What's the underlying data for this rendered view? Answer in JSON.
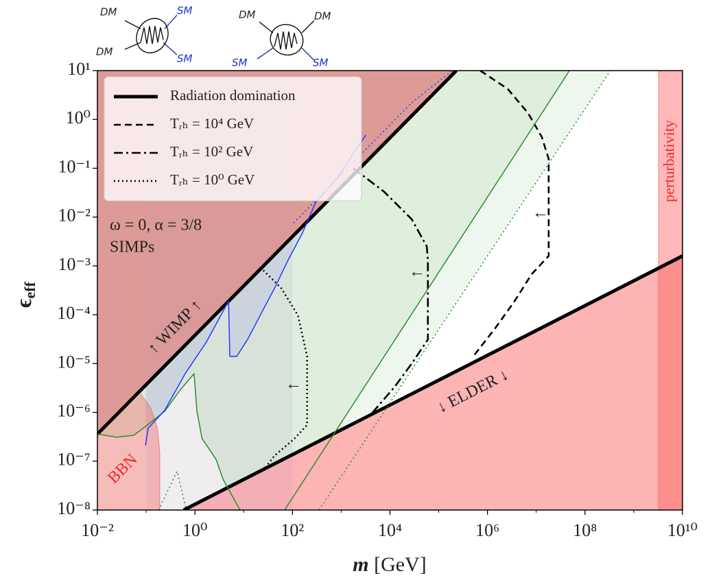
{
  "diagrams": [
    {
      "labels": [
        "DM",
        "SM",
        "DM",
        "SM"
      ]
    },
    {
      "labels": [
        "DM",
        "DM",
        "SM",
        "SM"
      ]
    }
  ],
  "chart_data": {
    "type": "line",
    "log_x": true,
    "log_y": true,
    "xlabel": {
      "symbol": "m",
      "unit": "[GeV]"
    },
    "ylabel": {
      "symbol": "ϵ",
      "subscript": "eff"
    },
    "xlim": [
      0.01,
      10000000000.0
    ],
    "ylim": [
      1e-08,
      10
    ],
    "xticks": [
      {
        "value": 0.01,
        "label": "10⁻²"
      },
      {
        "value": 1,
        "label": "10⁰"
      },
      {
        "value": 100.0,
        "label": "10²"
      },
      {
        "value": 10000.0,
        "label": "10⁴"
      },
      {
        "value": 1000000.0,
        "label": "10⁶"
      },
      {
        "value": 100000000.0,
        "label": "10⁸"
      },
      {
        "value": 10000000000.0,
        "label": "10¹⁰"
      }
    ],
    "xminorticks": [
      0.1,
      10,
      1000.0,
      100000.0,
      10000000.0,
      1000000000.0
    ],
    "yticks": [
      {
        "value": 1e-08,
        "label": "10⁻⁸"
      },
      {
        "value": 1e-07,
        "label": "10⁻⁷"
      },
      {
        "value": 1e-06,
        "label": "10⁻⁶"
      },
      {
        "value": 1e-05,
        "label": "10⁻⁵"
      },
      {
        "value": 0.0001,
        "label": "10⁻⁴"
      },
      {
        "value": 0.001,
        "label": "10⁻³"
      },
      {
        "value": 0.01,
        "label": "10⁻²"
      },
      {
        "value": 0.1,
        "label": "10⁻¹"
      },
      {
        "value": 1,
        "label": "10⁰"
      },
      {
        "value": 10,
        "label": "10¹"
      }
    ],
    "legend": "upper left",
    "series": [
      {
        "name": "Radiation domination",
        "color": "#000000",
        "style": "solid",
        "weight": "thick",
        "x": [
          0.01,
          230000.0
        ],
        "values": [
          3.6e-07,
          10
        ]
      },
      {
        "color": "#000000",
        "style": "solid",
        "weight": "thick",
        "x": [
          0.59,
          10000000000.0
        ],
        "values": [
          1e-08,
          0.0016
        ]
      },
      {
        "name": "Tᵣₕ = 10⁴ GeV",
        "color": "#000000",
        "style": "dashed",
        "weight": "medium",
        "x": [
          710000.0,
          2600000.0,
          6800000.0,
          13000000.0,
          18000000.0,
          18000000.0,
          8100000.0,
          3600000.0,
          1400000.0,
          510000.0
        ],
        "values": [
          10,
          4.2,
          1.35,
          0.44,
          0.155,
          0.0016,
          0.00068,
          0.00019,
          5.1e-05,
          1.4e-05
        ]
      },
      {
        "name": "Tᵣₕ = 10² GeV",
        "color": "#000000",
        "style": "dashdot",
        "weight": "medium",
        "x": [
          1770.0,
          7600.0,
          28000.0,
          57000.0,
          60000.0,
          60000.0,
          28000.0,
          12400.0,
          4000.0
        ],
        "values": [
          0.1,
          0.033,
          0.009,
          0.0025,
          0.0013,
          3.1e-05,
          1e-05,
          3.3e-06,
          8.9e-07
        ]
      },
      {
        "name": "Tᵣₕ = 10⁰ GeV",
        "color": "#000000",
        "style": "dotted",
        "weight": "medium",
        "x": [
          22,
          59,
          130,
          200,
          200,
          110,
          43,
          26
        ],
        "values": [
          0.00093,
          0.00035,
          9.7e-05,
          1.4e-05,
          5.5e-07,
          2.9e-07,
          1.3e-07,
          6.8e-08
        ]
      },
      {
        "color": "#2e8b2e",
        "style": "solid",
        "weight": "thin",
        "x": [
          69,
          48000000.0
        ],
        "values": [
          1e-08,
          10
        ]
      },
      {
        "color": "#2e8b2e",
        "style": "dotted",
        "weight": "thin",
        "x": [
          350,
          330000000.0
        ],
        "values": [
          1e-08,
          10
        ]
      },
      {
        "color": "#2e8b2e",
        "style": "dotted",
        "weight": "thin",
        "x": [
          0.18,
          0.43,
          0.67
        ],
        "values": [
          1e-08,
          6.2e-08,
          1e-08
        ]
      },
      {
        "color": "#2e8b2e",
        "style": "solid",
        "weight": "thin",
        "x": [
          0.01,
          0.025,
          0.056,
          0.106,
          0.24,
          0.49,
          0.96,
          1.1,
          1.4,
          2.7,
          3.8,
          8.4
        ],
        "values": [
          3.6e-07,
          3.1e-07,
          3.4e-07,
          5.5e-07,
          1.05e-06,
          2.8e-06,
          6.2e-06,
          1.05e-06,
          2.9e-07,
          1.1e-07,
          4.2e-08,
          1e-08
        ]
      },
      {
        "color": "#1f3cff",
        "style": "solid",
        "weight": "thin",
        "x": [
          0.097,
          0.11,
          0.24,
          0.63,
          1.7,
          4.9,
          5.2,
          7.2,
          12,
          26,
          43,
          81,
          160,
          300,
          790,
          3200
        ],
        "values": [
          2.1e-07,
          4.7e-07,
          1.1e-06,
          6.2e-06,
          2.7e-05,
          0.00019,
          1.4e-05,
          1.4e-05,
          3.1e-05,
          0.000135,
          0.00035,
          0.0013,
          0.0047,
          0.02,
          0.059,
          0.48
        ]
      },
      {
        "color": "#1f3cff",
        "style": "dotted",
        "weight": "thin",
        "x": [
          106,
          28000.0,
          190000.0
        ],
        "values": [
          0.0076,
          2.2,
          10
        ]
      }
    ],
    "regions": [
      {
        "label": "BBN",
        "x": [
          0.077,
          0.125,
          0.17,
          0.19,
          0.19
        ],
        "values": [
          2.4e-06,
          1.2e-06,
          4.7e-07,
          1.5e-07,
          1e-08
        ]
      },
      {
        "label": "perturbativity",
        "x_from": 3200000000.0
      }
    ],
    "annotations": [
      "↑ WIMP ↑",
      "↓ ELDER ↓",
      "ω = 0, α = 3/8",
      "SIMPs",
      "←",
      "←",
      "←"
    ]
  }
}
